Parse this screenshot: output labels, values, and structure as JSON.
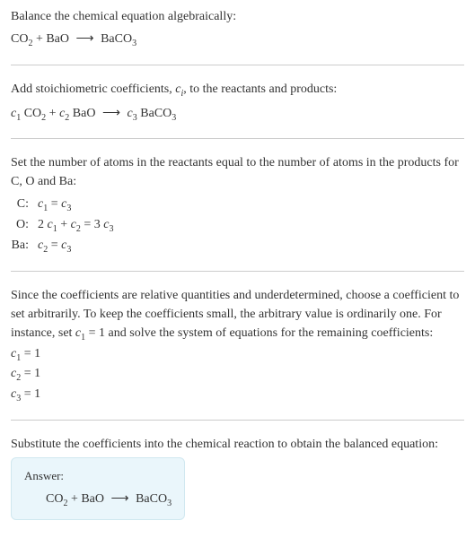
{
  "intro": {
    "line1": "Balance the chemical equation algebraically:",
    "equation_html": "CO<span class=\"sub\">2</span> + BaO <span class=\"arrow\">⟶</span> BaCO<span class=\"sub\">3</span>"
  },
  "step1": {
    "text_html": "Add stoichiometric coefficients, <span class=\"italic\">c<span class=\"sub\">i</span></span>, to the reactants and products:",
    "equation_html": "<span class=\"italic\">c</span><span class=\"sub\">1</span> CO<span class=\"sub\">2</span> + <span class=\"italic\">c</span><span class=\"sub\">2</span> BaO <span class=\"arrow\">⟶</span> <span class=\"italic\">c</span><span class=\"sub\">3</span> BaCO<span class=\"sub\">3</span>"
  },
  "step2": {
    "text": "Set the number of atoms in the reactants equal to the number of atoms in the products for C, O and Ba:",
    "rows": [
      {
        "label": "C:",
        "eq_html": "<span class=\"italic\">c</span><span class=\"sub\">1</span> = <span class=\"italic\">c</span><span class=\"sub\">3</span>"
      },
      {
        "label": "O:",
        "eq_html": "2 <span class=\"italic\">c</span><span class=\"sub\">1</span> + <span class=\"italic\">c</span><span class=\"sub\">2</span> = 3 <span class=\"italic\">c</span><span class=\"sub\">3</span>"
      },
      {
        "label": "Ba:",
        "eq_html": "<span class=\"italic\">c</span><span class=\"sub\">2</span> = <span class=\"italic\">c</span><span class=\"sub\">3</span>"
      }
    ]
  },
  "step3": {
    "text_html": "Since the coefficients are relative quantities and underdetermined, choose a coefficient to set arbitrarily. To keep the coefficients small, the arbitrary value is ordinarily one. For instance, set <span class=\"italic\">c</span><span class=\"sub\">1</span> = 1 and solve the system of equations for the remaining coefficients:",
    "solutions": [
      {
        "html": "<span class=\"italic\">c</span><span class=\"sub\">1</span> = 1"
      },
      {
        "html": "<span class=\"italic\">c</span><span class=\"sub\">2</span> = 1"
      },
      {
        "html": "<span class=\"italic\">c</span><span class=\"sub\">3</span> = 1"
      }
    ]
  },
  "step4": {
    "text": "Substitute the coefficients into the chemical reaction to obtain the balanced equation:"
  },
  "answer": {
    "label": "Answer:",
    "equation_html": "CO<span class=\"sub\">2</span> + BaO <span class=\"arrow\">⟶</span> BaCO<span class=\"sub\">3</span>"
  },
  "colors": {
    "text": "#333333",
    "divider": "#cccccc",
    "answer_bg": "#eaf6fb",
    "answer_border": "#d0e8f0"
  }
}
